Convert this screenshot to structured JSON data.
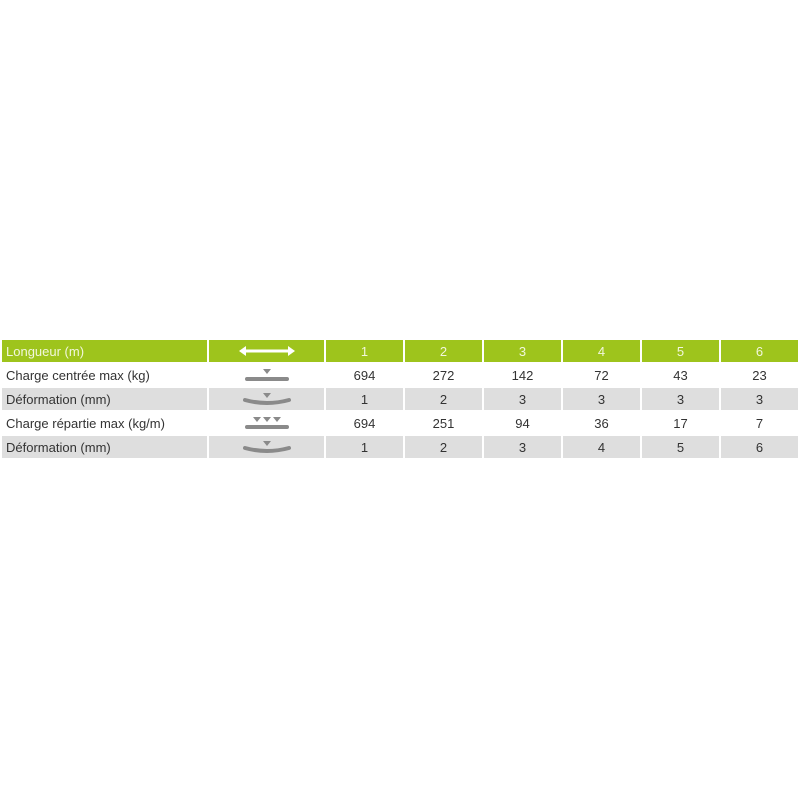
{
  "colors": {
    "header_bg": "#9ec41c",
    "alt_row_bg": "#dedede",
    "icon": "#8a8a8a"
  },
  "header": {
    "label": "Longueur (m)",
    "icon": "double-arrow-length-icon",
    "columns": [
      "1",
      "2",
      "3",
      "4",
      "5",
      "6"
    ]
  },
  "rows": [
    {
      "label": "Charge centrée max (kg)",
      "icon": "center-load-icon",
      "values": [
        "694",
        "272",
        "142",
        "72",
        "43",
        "23"
      ]
    },
    {
      "label": "Déformation (mm)",
      "icon": "deflection-center-icon",
      "values": [
        "1",
        "2",
        "3",
        "3",
        "3",
        "3"
      ]
    },
    {
      "label": "Charge répartie max (kg/m)",
      "icon": "distributed-load-icon",
      "values": [
        "694",
        "251",
        "94",
        "36",
        "17",
        "7"
      ]
    },
    {
      "label": "Déformation (mm)",
      "icon": "deflection-distributed-icon",
      "values": [
        "1",
        "2",
        "3",
        "4",
        "5",
        "6"
      ]
    }
  ]
}
